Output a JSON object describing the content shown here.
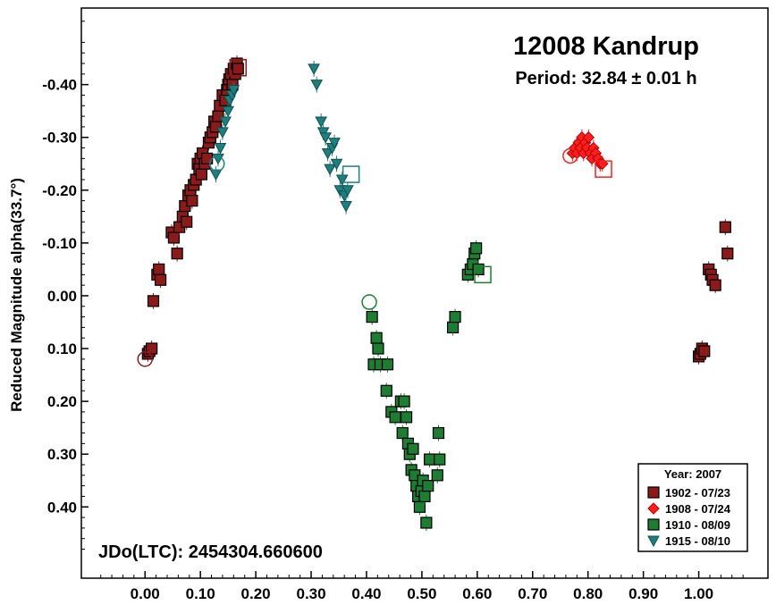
{
  "chart_data": {
    "type": "scatter",
    "title": "12008 Kandrup",
    "subtitle": "Period: 32.84 ± 0.01 h",
    "xlabel": "",
    "ylabel": "Reduced Magnitude alpha(33.7°)",
    "annotation": "JDo(LTC): 2454304.660600",
    "xlim": [
      -0.115,
      1.125
    ],
    "ylim": [
      0.535,
      -0.545
    ],
    "y_inverted": true,
    "x_ticks": [
      0.0,
      0.1,
      0.2,
      0.3,
      0.4,
      0.5,
      0.6,
      0.7,
      0.8,
      0.9,
      1.0
    ],
    "x_tick_labels": [
      "0.00",
      "0.10",
      "0.20",
      "0.30",
      "0.40",
      "0.50",
      "0.60",
      "0.70",
      "0.80",
      "0.90",
      "1.00"
    ],
    "y_ticks": [
      -0.4,
      -0.3,
      -0.2,
      -0.1,
      0.0,
      0.1,
      0.2,
      0.3,
      0.4
    ],
    "y_tick_labels": [
      "-0.40",
      "-0.30",
      "-0.20",
      "-0.10",
      "0.00",
      "0.10",
      "0.20",
      "0.30",
      "0.40"
    ],
    "grid": false,
    "legend": {
      "title": "Year: 2007",
      "placement": "bottom-right",
      "entries": [
        {
          "label": "1902 - 07/23",
          "marker": "square",
          "color": "#8b1a1a"
        },
        {
          "label": "1908 - 07/24",
          "marker": "diamond",
          "color": "#ff1f1f"
        },
        {
          "label": "1910 - 08/09",
          "marker": "square",
          "color": "#1e7d32"
        },
        {
          "label": "1915 - 08/10",
          "marker": "triangle-down",
          "color": "#1f7f7f"
        }
      ]
    },
    "series": [
      {
        "name": "1902 - 07/23",
        "marker": "square",
        "color": "#8b1a1a",
        "start": [
          0.0,
          0.12
        ],
        "end": [
          0.168,
          -0.432
        ],
        "x": [
          0.005,
          0.008,
          0.012,
          0.015,
          0.022,
          0.025,
          0.028,
          0.048,
          0.052,
          0.058,
          0.062,
          0.068,
          0.072,
          0.075,
          0.078,
          0.082,
          0.085,
          0.088,
          0.092,
          0.095,
          0.098,
          0.1,
          0.102,
          0.104,
          0.108,
          0.112,
          0.115,
          0.118,
          0.122,
          0.125,
          0.128,
          0.132,
          0.135,
          0.14,
          0.145,
          0.148,
          0.15,
          0.152,
          0.155,
          0.158,
          0.16,
          0.163,
          0.166,
          0.168,
          1.0,
          1.003,
          1.006,
          1.01,
          1.018,
          1.022,
          1.025,
          1.03,
          1.048,
          1.052
        ],
        "y": [
          0.11,
          0.105,
          0.1,
          0.01,
          -0.04,
          -0.05,
          -0.03,
          -0.12,
          -0.11,
          -0.08,
          -0.13,
          -0.15,
          -0.17,
          -0.14,
          -0.19,
          -0.2,
          -0.18,
          -0.21,
          -0.22,
          -0.25,
          -0.24,
          -0.26,
          -0.23,
          -0.27,
          -0.25,
          -0.26,
          -0.29,
          -0.3,
          -0.31,
          -0.33,
          -0.32,
          -0.34,
          -0.36,
          -0.38,
          -0.37,
          -0.39,
          -0.4,
          -0.41,
          -0.42,
          -0.4,
          -0.43,
          -0.42,
          -0.44,
          -0.43,
          0.115,
          0.11,
          0.1,
          0.105,
          -0.05,
          -0.04,
          -0.03,
          -0.02,
          -0.13,
          -0.08
        ]
      },
      {
        "name": "1908 - 07/24",
        "marker": "diamond",
        "color": "#ff1f1f",
        "start": [
          0.768,
          -0.265
        ],
        "end": [
          0.828,
          -0.24
        ],
        "x": [
          0.772,
          0.776,
          0.78,
          0.783,
          0.786,
          0.789,
          0.792,
          0.795,
          0.798,
          0.801,
          0.804,
          0.807,
          0.81,
          0.814,
          0.818,
          0.822,
          0.826
        ],
        "y": [
          -0.27,
          -0.28,
          -0.27,
          -0.29,
          -0.28,
          -0.3,
          -0.27,
          -0.29,
          -0.28,
          -0.3,
          -0.27,
          -0.26,
          -0.28,
          -0.27,
          -0.26,
          -0.25,
          -0.25
        ]
      },
      {
        "name": "1910 - 08/09",
        "marker": "square",
        "color": "#1e7d32",
        "start": [
          0.405,
          0.012
        ],
        "end": [
          0.61,
          -0.04
        ],
        "x": [
          0.41,
          0.413,
          0.418,
          0.421,
          0.425,
          0.436,
          0.438,
          0.445,
          0.452,
          0.462,
          0.465,
          0.468,
          0.472,
          0.475,
          0.478,
          0.481,
          0.484,
          0.487,
          0.49,
          0.493,
          0.496,
          0.499,
          0.502,
          0.505,
          0.508,
          0.511,
          0.514,
          0.528,
          0.53,
          0.532,
          0.556,
          0.56,
          0.583,
          0.588,
          0.592,
          0.595,
          0.598,
          0.602
        ],
        "y": [
          0.04,
          0.13,
          0.08,
          0.1,
          0.13,
          0.18,
          0.13,
          0.22,
          0.23,
          0.2,
          0.26,
          0.2,
          0.23,
          0.28,
          0.3,
          0.33,
          0.29,
          0.34,
          0.36,
          0.38,
          0.4,
          0.37,
          0.35,
          0.38,
          0.43,
          0.36,
          0.31,
          0.34,
          0.26,
          0.31,
          0.06,
          0.04,
          -0.04,
          -0.05,
          -0.06,
          -0.08,
          -0.09,
          -0.05
        ]
      },
      {
        "name": "1915 - 08/10",
        "marker": "triangle-down",
        "color": "#1f7f7f",
        "start": [
          0.13,
          -0.25
        ],
        "end": [
          0.372,
          -0.23
        ],
        "x": [
          0.128,
          0.132,
          0.136,
          0.14,
          0.145,
          0.15,
          0.153,
          0.157,
          0.16,
          0.305,
          0.31,
          0.318,
          0.322,
          0.326,
          0.33,
          0.334,
          0.338,
          0.342,
          0.346,
          0.352,
          0.356,
          0.36,
          0.363,
          0.366
        ],
        "y": [
          -0.23,
          -0.26,
          -0.28,
          -0.31,
          -0.33,
          -0.35,
          -0.37,
          -0.38,
          -0.39,
          -0.43,
          -0.4,
          -0.33,
          -0.31,
          -0.3,
          -0.27,
          -0.24,
          -0.28,
          -0.29,
          -0.25,
          -0.2,
          -0.22,
          -0.19,
          -0.17,
          -0.2
        ]
      }
    ]
  }
}
